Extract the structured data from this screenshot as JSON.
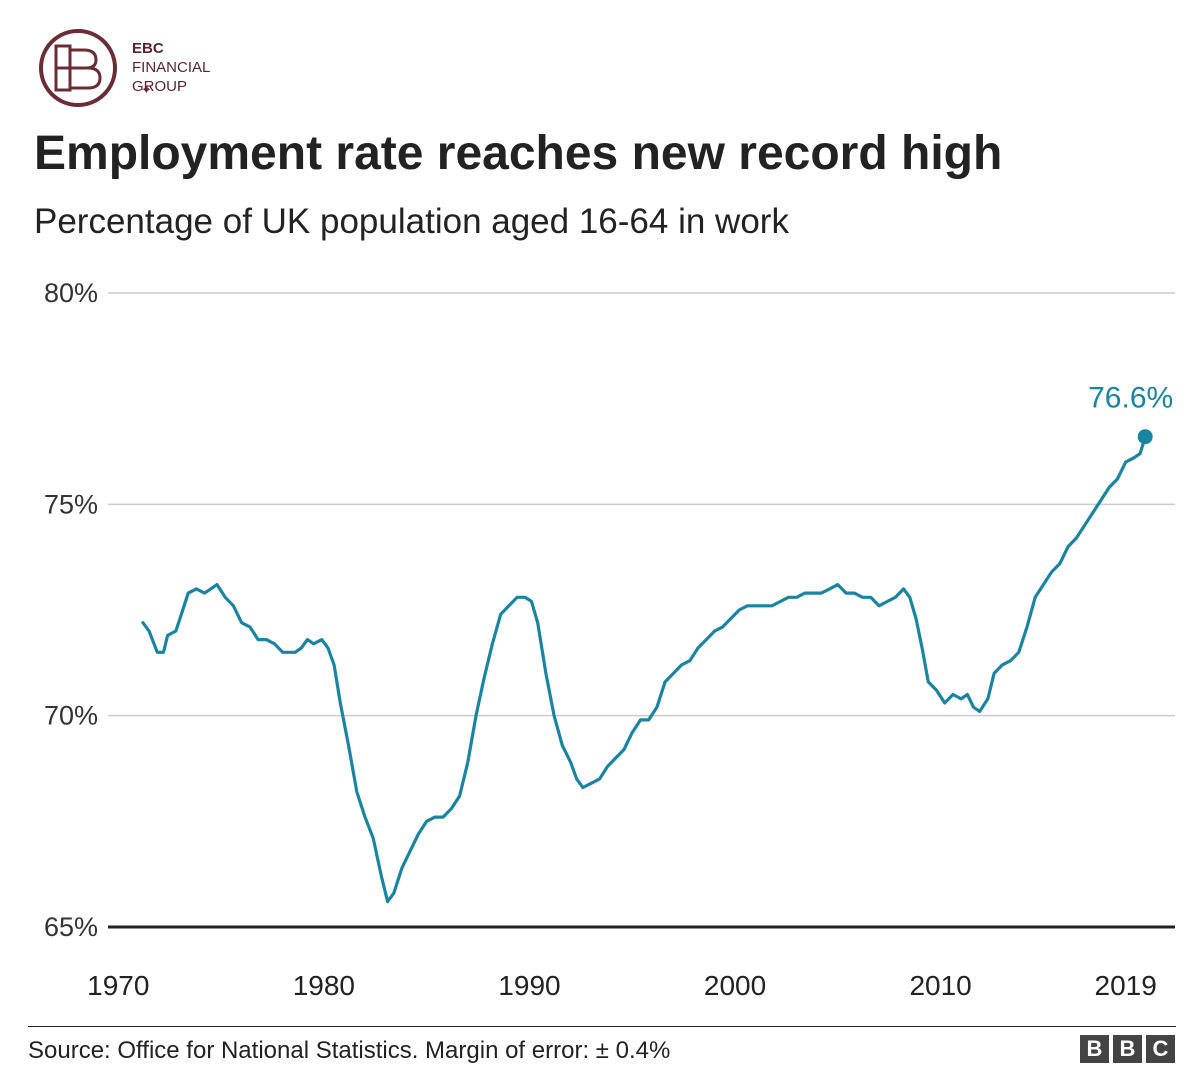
{
  "header": {
    "logo_lines": [
      "EBC",
      "FINANCIAL",
      "GROUP"
    ],
    "title": "Employment rate reaches new record high",
    "subtitle": "Percentage of UK population aged 16-64 in work"
  },
  "footer": {
    "source": "Source: Office for National Statistics. Margin of error: ± 0.4%",
    "bbc_letters": [
      "B",
      "B",
      "C"
    ]
  },
  "colors": {
    "series": "#1a84a3",
    "grid": "#cccccc",
    "baseline": "#222222",
    "logo": "#6b2c35"
  },
  "chart_data": {
    "type": "line",
    "title": "Employment rate reaches new record high",
    "subtitle": "Percentage of UK population aged 16-64 in work",
    "ylim": [
      65,
      80
    ],
    "xlim": [
      1969.5,
      2021.4
    ],
    "y_ticks": [
      80,
      75,
      70,
      65
    ],
    "y_tick_labels": [
      "80%",
      "75%",
      "70%",
      "65%"
    ],
    "x_ticks": [
      1970,
      1980,
      1990,
      2000,
      2010,
      2019
    ],
    "x_tick_labels": [
      "1970",
      "1980",
      "1990",
      "2000",
      "2010",
      "2019"
    ],
    "grid": true,
    "series": [
      {
        "color": "#1a84a3",
        "points": [
          [
            1971.2,
            72.2
          ],
          [
            1971.5,
            72.0
          ],
          [
            1971.9,
            71.5
          ],
          [
            1972.2,
            71.5
          ],
          [
            1972.4,
            71.9
          ],
          [
            1972.8,
            72.0
          ],
          [
            1973.0,
            72.3
          ],
          [
            1973.4,
            72.9
          ],
          [
            1973.8,
            73.0
          ],
          [
            1974.2,
            72.9
          ],
          [
            1974.5,
            73.0
          ],
          [
            1974.8,
            73.1
          ],
          [
            1975.2,
            72.8
          ],
          [
            1975.6,
            72.6
          ],
          [
            1976.0,
            72.2
          ],
          [
            1976.4,
            72.1
          ],
          [
            1976.8,
            71.8
          ],
          [
            1977.2,
            71.8
          ],
          [
            1977.6,
            71.7
          ],
          [
            1978.0,
            71.5
          ],
          [
            1978.6,
            71.5
          ],
          [
            1978.9,
            71.6
          ],
          [
            1979.2,
            71.8
          ],
          [
            1979.5,
            71.7
          ],
          [
            1979.9,
            71.8
          ],
          [
            1980.2,
            71.6
          ],
          [
            1980.5,
            71.2
          ],
          [
            1980.8,
            70.3
          ],
          [
            1981.2,
            69.3
          ],
          [
            1981.6,
            68.2
          ],
          [
            1982.0,
            67.6
          ],
          [
            1982.4,
            67.1
          ],
          [
            1982.8,
            66.2
          ],
          [
            1983.1,
            65.6
          ],
          [
            1983.4,
            65.8
          ],
          [
            1983.8,
            66.4
          ],
          [
            1984.2,
            66.8
          ],
          [
            1984.6,
            67.2
          ],
          [
            1985.0,
            67.5
          ],
          [
            1985.4,
            67.6
          ],
          [
            1985.8,
            67.6
          ],
          [
            1986.2,
            67.8
          ],
          [
            1986.6,
            68.1
          ],
          [
            1987.0,
            68.9
          ],
          [
            1987.4,
            70.0
          ],
          [
            1987.8,
            70.9
          ],
          [
            1988.2,
            71.7
          ],
          [
            1988.6,
            72.4
          ],
          [
            1989.0,
            72.6
          ],
          [
            1989.4,
            72.8
          ],
          [
            1989.8,
            72.8
          ],
          [
            1990.1,
            72.7
          ],
          [
            1990.4,
            72.2
          ],
          [
            1990.8,
            71.0
          ],
          [
            1991.2,
            70.0
          ],
          [
            1991.6,
            69.3
          ],
          [
            1992.0,
            68.9
          ],
          [
            1992.3,
            68.5
          ],
          [
            1992.6,
            68.3
          ],
          [
            1993.0,
            68.4
          ],
          [
            1993.4,
            68.5
          ],
          [
            1993.8,
            68.8
          ],
          [
            1994.2,
            69.0
          ],
          [
            1994.6,
            69.2
          ],
          [
            1995.0,
            69.6
          ],
          [
            1995.4,
            69.9
          ],
          [
            1995.8,
            69.9
          ],
          [
            1996.2,
            70.2
          ],
          [
            1996.6,
            70.8
          ],
          [
            1997.0,
            71.0
          ],
          [
            1997.4,
            71.2
          ],
          [
            1997.8,
            71.3
          ],
          [
            1998.2,
            71.6
          ],
          [
            1998.6,
            71.8
          ],
          [
            1999.0,
            72.0
          ],
          [
            1999.4,
            72.1
          ],
          [
            1999.8,
            72.3
          ],
          [
            2000.2,
            72.5
          ],
          [
            2000.6,
            72.6
          ],
          [
            2001.0,
            72.6
          ],
          [
            2001.4,
            72.6
          ],
          [
            2001.8,
            72.6
          ],
          [
            2002.2,
            72.7
          ],
          [
            2002.6,
            72.8
          ],
          [
            2003.0,
            72.8
          ],
          [
            2003.4,
            72.9
          ],
          [
            2003.8,
            72.9
          ],
          [
            2004.2,
            72.9
          ],
          [
            2004.6,
            73.0
          ],
          [
            2005.0,
            73.1
          ],
          [
            2005.4,
            72.9
          ],
          [
            2005.8,
            72.9
          ],
          [
            2006.2,
            72.8
          ],
          [
            2006.6,
            72.8
          ],
          [
            2007.0,
            72.6
          ],
          [
            2007.4,
            72.7
          ],
          [
            2007.8,
            72.8
          ],
          [
            2008.2,
            73.0
          ],
          [
            2008.5,
            72.8
          ],
          [
            2008.8,
            72.3
          ],
          [
            2009.1,
            71.6
          ],
          [
            2009.4,
            70.8
          ],
          [
            2009.8,
            70.6
          ],
          [
            2010.2,
            70.3
          ],
          [
            2010.6,
            70.5
          ],
          [
            2011.0,
            70.4
          ],
          [
            2011.3,
            70.5
          ],
          [
            2011.6,
            70.2
          ],
          [
            2011.9,
            70.1
          ],
          [
            2012.3,
            70.4
          ],
          [
            2012.6,
            71.0
          ],
          [
            2013.0,
            71.2
          ],
          [
            2013.4,
            71.3
          ],
          [
            2013.8,
            71.5
          ],
          [
            2014.2,
            72.1
          ],
          [
            2014.6,
            72.8
          ],
          [
            2015.0,
            73.1
          ],
          [
            2015.4,
            73.4
          ],
          [
            2015.8,
            73.6
          ],
          [
            2016.2,
            74.0
          ],
          [
            2016.6,
            74.2
          ],
          [
            2017.0,
            74.5
          ],
          [
            2017.4,
            74.8
          ],
          [
            2017.8,
            75.1
          ],
          [
            2018.2,
            75.4
          ],
          [
            2018.6,
            75.6
          ],
          [
            2019.0,
            76.0
          ],
          [
            2019.4,
            76.1
          ],
          [
            2019.7,
            76.2
          ],
          [
            2019.95,
            76.6
          ]
        ]
      }
    ],
    "annotations": [
      {
        "text": "76.6%",
        "x": 2019.95,
        "y": 76.6
      }
    ]
  }
}
